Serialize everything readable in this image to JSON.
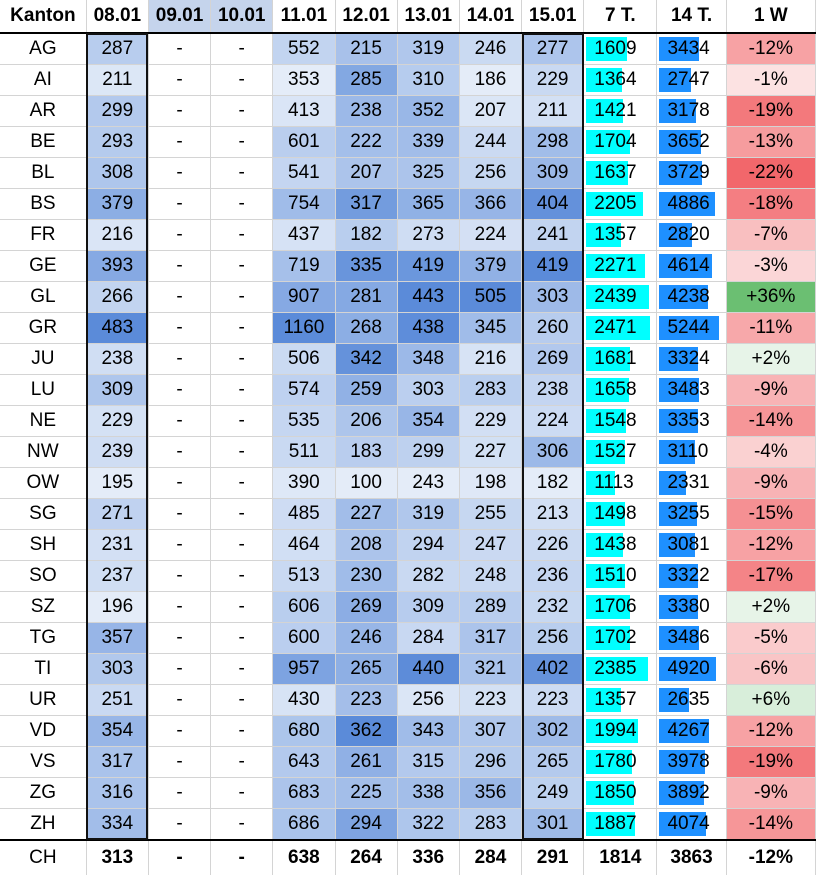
{
  "header": {
    "kanton": "Kanton",
    "days": [
      "08.01",
      "09.01",
      "10.01",
      "11.01",
      "12.01",
      "13.01",
      "14.01",
      "15.01"
    ],
    "sum7": "7 T.",
    "sum14": "14 T.",
    "week": "1 W"
  },
  "colors": {
    "heat_low": "#e4ecf8",
    "heat_high": "#5b8bd9",
    "header_gap": "#c5d4ec",
    "bar7": "#00ffff",
    "bar14": "#1e90ff",
    "pct_neg_strong": "#f2676b",
    "pct_neg_light": "#fce8e8",
    "pct_pos_strong": "#6bbf72",
    "pct_pos_light": "#eef7ef"
  },
  "rows": [
    {
      "kanton": "AG",
      "d": [
        "287",
        "-",
        "-",
        "552",
        "215",
        "319",
        "246",
        "277"
      ],
      "s7": "1609",
      "s14": "3434",
      "w": "-12%",
      "wv": -12
    },
    {
      "kanton": "AI",
      "d": [
        "211",
        "-",
        "-",
        "353",
        "285",
        "310",
        "186",
        "229"
      ],
      "s7": "1364",
      "s14": "2747",
      "w": "-1%",
      "wv": -1
    },
    {
      "kanton": "AR",
      "d": [
        "299",
        "-",
        "-",
        "413",
        "238",
        "352",
        "207",
        "211"
      ],
      "s7": "1421",
      "s14": "3178",
      "w": "-19%",
      "wv": -19
    },
    {
      "kanton": "BE",
      "d": [
        "293",
        "-",
        "-",
        "601",
        "222",
        "339",
        "244",
        "298"
      ],
      "s7": "1704",
      "s14": "3652",
      "w": "-13%",
      "wv": -13
    },
    {
      "kanton": "BL",
      "d": [
        "308",
        "-",
        "-",
        "541",
        "207",
        "325",
        "256",
        "309"
      ],
      "s7": "1637",
      "s14": "3729",
      "w": "-22%",
      "wv": -22
    },
    {
      "kanton": "BS",
      "d": [
        "379",
        "-",
        "-",
        "754",
        "317",
        "365",
        "366",
        "404"
      ],
      "s7": "2205",
      "s14": "4886",
      "w": "-18%",
      "wv": -18
    },
    {
      "kanton": "FR",
      "d": [
        "216",
        "-",
        "-",
        "437",
        "182",
        "273",
        "224",
        "241"
      ],
      "s7": "1357",
      "s14": "2820",
      "w": "-7%",
      "wv": -7
    },
    {
      "kanton": "GE",
      "d": [
        "393",
        "-",
        "-",
        "719",
        "335",
        "419",
        "379",
        "419"
      ],
      "s7": "2271",
      "s14": "4614",
      "w": "-3%",
      "wv": -3
    },
    {
      "kanton": "GL",
      "d": [
        "266",
        "-",
        "-",
        "907",
        "281",
        "443",
        "505",
        "303"
      ],
      "s7": "2439",
      "s14": "4238",
      "w": "+36%",
      "wv": 36
    },
    {
      "kanton": "GR",
      "d": [
        "483",
        "-",
        "-",
        "1160",
        "268",
        "438",
        "345",
        "260"
      ],
      "s7": "2471",
      "s14": "5244",
      "w": "-11%",
      "wv": -11
    },
    {
      "kanton": "JU",
      "d": [
        "238",
        "-",
        "-",
        "506",
        "342",
        "348",
        "216",
        "269"
      ],
      "s7": "1681",
      "s14": "3324",
      "w": "+2%",
      "wv": 2
    },
    {
      "kanton": "LU",
      "d": [
        "309",
        "-",
        "-",
        "574",
        "259",
        "303",
        "283",
        "238"
      ],
      "s7": "1658",
      "s14": "3483",
      "w": "-9%",
      "wv": -9
    },
    {
      "kanton": "NE",
      "d": [
        "229",
        "-",
        "-",
        "535",
        "206",
        "354",
        "229",
        "224"
      ],
      "s7": "1548",
      "s14": "3353",
      "w": "-14%",
      "wv": -14
    },
    {
      "kanton": "NW",
      "d": [
        "239",
        "-",
        "-",
        "511",
        "183",
        "299",
        "227",
        "306"
      ],
      "s7": "1527",
      "s14": "3110",
      "w": "-4%",
      "wv": -4
    },
    {
      "kanton": "OW",
      "d": [
        "195",
        "-",
        "-",
        "390",
        "100",
        "243",
        "198",
        "182"
      ],
      "s7": "1113",
      "s14": "2331",
      "w": "-9%",
      "wv": -9
    },
    {
      "kanton": "SG",
      "d": [
        "271",
        "-",
        "-",
        "485",
        "227",
        "319",
        "255",
        "213"
      ],
      "s7": "1498",
      "s14": "3255",
      "w": "-15%",
      "wv": -15
    },
    {
      "kanton": "SH",
      "d": [
        "231",
        "-",
        "-",
        "464",
        "208",
        "294",
        "247",
        "226"
      ],
      "s7": "1438",
      "s14": "3081",
      "w": "-12%",
      "wv": -12
    },
    {
      "kanton": "SO",
      "d": [
        "237",
        "-",
        "-",
        "513",
        "230",
        "282",
        "248",
        "236"
      ],
      "s7": "1510",
      "s14": "3322",
      "w": "-17%",
      "wv": -17
    },
    {
      "kanton": "SZ",
      "d": [
        "196",
        "-",
        "-",
        "606",
        "269",
        "309",
        "289",
        "232"
      ],
      "s7": "1706",
      "s14": "3380",
      "w": "+2%",
      "wv": 2
    },
    {
      "kanton": "TG",
      "d": [
        "357",
        "-",
        "-",
        "600",
        "246",
        "284",
        "317",
        "256"
      ],
      "s7": "1702",
      "s14": "3486",
      "w": "-5%",
      "wv": -5
    },
    {
      "kanton": "TI",
      "d": [
        "303",
        "-",
        "-",
        "957",
        "265",
        "440",
        "321",
        "402"
      ],
      "s7": "2385",
      "s14": "4920",
      "w": "-6%",
      "wv": -6
    },
    {
      "kanton": "UR",
      "d": [
        "251",
        "-",
        "-",
        "430",
        "223",
        "256",
        "223",
        "223"
      ],
      "s7": "1357",
      "s14": "2635",
      "w": "+6%",
      "wv": 6
    },
    {
      "kanton": "VD",
      "d": [
        "354",
        "-",
        "-",
        "680",
        "362",
        "343",
        "307",
        "302"
      ],
      "s7": "1994",
      "s14": "4267",
      "w": "-12%",
      "wv": -12
    },
    {
      "kanton": "VS",
      "d": [
        "317",
        "-",
        "-",
        "643",
        "261",
        "315",
        "296",
        "265"
      ],
      "s7": "1780",
      "s14": "3978",
      "w": "-19%",
      "wv": -19
    },
    {
      "kanton": "ZG",
      "d": [
        "316",
        "-",
        "-",
        "683",
        "225",
        "338",
        "356",
        "249"
      ],
      "s7": "1850",
      "s14": "3892",
      "w": "-9%",
      "wv": -9
    },
    {
      "kanton": "ZH",
      "d": [
        "334",
        "-",
        "-",
        "686",
        "294",
        "322",
        "283",
        "301"
      ],
      "s7": "1887",
      "s14": "4074",
      "w": "-14%",
      "wv": -14
    }
  ],
  "total": {
    "kanton": "CH",
    "d": [
      "313",
      "-",
      "-",
      "638",
      "264",
      "336",
      "284",
      "291"
    ],
    "s7": "1814",
    "s14": "3863",
    "w": "-12%"
  }
}
